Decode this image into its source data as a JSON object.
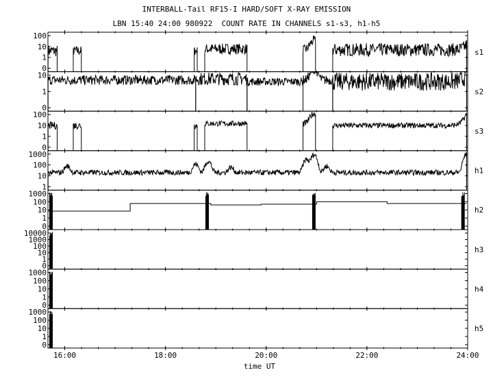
{
  "title": "INTERBALL-Tail RF15-I HARD/SOFT X-RAY EMISSION",
  "subtitle": "LBN 15:40 24:00 980922  COUNT RATE IN CHANNELS s1-s3, h1-h5",
  "chart_data": {
    "type": "line",
    "xlabel": "time UT",
    "xlim": [
      "15:40",
      "24:00"
    ],
    "xticks": [
      "16:00",
      "18:00",
      "20:00",
      "22:00",
      "24:00"
    ],
    "yscale": "log",
    "grid": false,
    "panels": [
      {
        "name": "s1",
        "yticks": [
          "100",
          "10",
          "1",
          "0"
        ],
        "ylim_decades": 3,
        "segments": [
          {
            "x": [
              15.67,
              15.85
            ],
            "y": 4,
            "noise": 0.55
          },
          {
            "x": [
              16.17,
              16.33
            ],
            "y": 4,
            "noise": 0.45
          },
          {
            "x": [
              18.57,
              18.63
            ],
            "y": 4,
            "noise": 0.4
          },
          {
            "x": [
              18.78,
              19.62
            ],
            "y": 6,
            "noise": 0.5
          },
          {
            "x": [
              20.73,
              20.98
            ],
            "y": 5,
            "noise": 0.45,
            "peak": {
              "x": 20.95,
              "y": 30
            }
          },
          {
            "x": [
              21.32,
              23.98
            ],
            "y": 5,
            "noise": 0.6,
            "end_rise": 10
          }
        ]
      },
      {
        "name": "s2",
        "yticks": [
          "10",
          "1",
          "0"
        ],
        "ylim_decades": 2,
        "segments": [
          {
            "x": [
              15.67,
              18.6
            ],
            "y": 5,
            "noise": 0.3
          },
          {
            "x": [
              18.6,
              19.62
            ],
            "y": 6,
            "noise": 0.4
          },
          {
            "x": [
              19.62,
              20.73
            ],
            "y": 4,
            "noise": 0.25
          },
          {
            "x": [
              20.73,
              21.32
            ],
            "y": 5,
            "noise": 0.3,
            "peak": {
              "x": 20.95,
              "y": 20
            }
          },
          {
            "x": [
              21.32,
              23.98
            ],
            "y": 4,
            "noise": 0.55,
            "end_rise": 9
          }
        ]
      },
      {
        "name": "s3",
        "yticks": [
          "100",
          "10",
          "1",
          "0"
        ],
        "ylim_decades": 3,
        "segments": [
          {
            "x": [
              15.67,
              15.85
            ],
            "y": 10,
            "noise": 0.35
          },
          {
            "x": [
              16.17,
              16.33
            ],
            "y": 10,
            "noise": 0.35
          },
          {
            "x": [
              18.57,
              18.63
            ],
            "y": 10,
            "noise": 0.3
          },
          {
            "x": [
              18.78,
              19.62
            ],
            "y": 15,
            "noise": 0.25
          },
          {
            "x": [
              20.73,
              20.98
            ],
            "y": 15,
            "noise": 0.3,
            "peak": {
              "x": 20.95,
              "y": 110
            }
          },
          {
            "x": [
              21.32,
              23.98
            ],
            "y": 10,
            "noise": 0.25,
            "end_rise": 100
          }
        ]
      },
      {
        "name": "h1",
        "yticks": [
          "1000",
          "100",
          "10",
          "1"
        ],
        "ylim_decades": 3,
        "segments": [
          {
            "x": [
              15.67,
              23.98
            ],
            "y": 20,
            "noise": 0.25,
            "bumps": [
              [
                16.05,
                60
              ],
              [
                18.6,
                100
              ],
              [
                18.85,
                200
              ],
              [
                19.3,
                40
              ],
              [
                20.8,
                300
              ],
              [
                20.95,
                900
              ],
              [
                21.2,
                60
              ],
              [
                23.98,
                1000
              ]
            ]
          }
        ]
      },
      {
        "name": "h2",
        "yticks": [
          "1000",
          "100",
          "10",
          "1",
          "0"
        ],
        "ylim_decades": 3,
        "steps": [
          [
            15.67,
            7
          ],
          [
            17.3,
            60
          ],
          [
            18.9,
            40
          ],
          [
            19.9,
            50
          ],
          [
            21.0,
            100
          ],
          [
            22.4,
            60
          ]
        ],
        "spikes": [
          15.7,
          18.8,
          20.92,
          23.88
        ]
      },
      {
        "name": "h3",
        "yticks": [
          "10000",
          "1000",
          "100",
          "10",
          "1",
          "0"
        ],
        "ylim_decades": 4,
        "spikes": [
          15.7
        ]
      },
      {
        "name": "h4",
        "yticks": [
          "1000",
          "100",
          "10",
          "1",
          "0"
        ],
        "ylim_decades": 3,
        "spikes": [
          15.7
        ]
      },
      {
        "name": "h5",
        "yticks": [
          "1000",
          "100",
          "10",
          "1",
          "0"
        ],
        "ylim_decades": 3,
        "spikes": [
          15.7
        ]
      }
    ]
  }
}
